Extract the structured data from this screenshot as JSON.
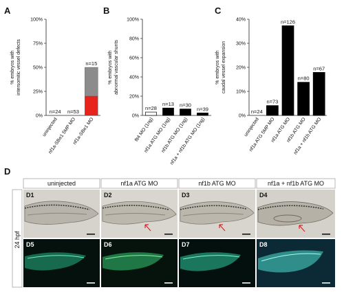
{
  "panels": {
    "A": {
      "label": "A"
    },
    "B": {
      "label": "B"
    },
    "C": {
      "label": "C"
    },
    "D": {
      "label": "D"
    }
  },
  "chart_data": [
    {
      "type": "bar",
      "panel": "A",
      "ylabel": "% embryos with intersomitic vessel defects",
      "ylabel_lines": [
        "% embryos with",
        "intersomitic vessel defects"
      ],
      "ylim": [
        0,
        100
      ],
      "yticks": [
        "0%",
        "25%",
        "50%",
        "75%",
        "100%"
      ],
      "categories": [
        "uninjected",
        "nf1a-SBe1 5MP MO",
        "nf1a-SBe1 MO"
      ],
      "n_labels": [
        "n=24",
        "n=53",
        "n=15"
      ],
      "series": [
        {
          "name": "",
          "color": "#e8231c",
          "values": [
            0,
            0,
            20
          ]
        },
        {
          "name": "",
          "color": "#8c8c8c",
          "values": [
            0,
            0,
            30
          ]
        }
      ]
    },
    {
      "type": "bar",
      "panel": "B",
      "ylabel": "% embryos with abnormal vascular shunts",
      "ylabel_lines": [
        "% embryos with",
        "abnormal vascular shunts"
      ],
      "ylim": [
        0,
        100
      ],
      "yticks": [
        "0%",
        "20%",
        "40%",
        "60%",
        "80%",
        "100%"
      ],
      "categories": [
        "flt4 MO (1ng)",
        "nf1a ATG MO (1ng)",
        "nf1b ATG MO (1ng)",
        "nf1a + nf1b ATG MO (1ng)"
      ],
      "n_labels": [
        "n=28",
        "n=13",
        "n=30",
        "n=39"
      ],
      "values": [
        3.5,
        7.7,
        6.7,
        2.6
      ],
      "colors": [
        "#ffffff",
        "#000000",
        "#000000",
        "#000000"
      ]
    },
    {
      "type": "bar",
      "panel": "C",
      "ylabel": "% embryos with caudal vessel expansion",
      "ylabel_lines": [
        "% embryos with",
        "caudal vessel expansion"
      ],
      "ylim": [
        0,
        40
      ],
      "yticks": [
        "0%",
        "10%",
        "20%",
        "30%",
        "40%"
      ],
      "categories": [
        "uninjected",
        "nf1a ATG 5MP MO",
        "nf1a ATG MO",
        "nf1b ATG MO",
        "nf1a + nf1b ATG MO"
      ],
      "n_labels": [
        "n=24",
        "n=73",
        "n=126",
        "n=80",
        "n=67"
      ],
      "values": [
        0,
        4.1,
        37.3,
        13.8,
        17.9
      ],
      "colors": [
        "#000000",
        "#000000",
        "#000000",
        "#000000",
        "#000000"
      ]
    }
  ],
  "microscopy": {
    "row_label": "24 hpf",
    "headers": [
      "uninjected",
      "nf1a ATG MO",
      "nf1b ATG MO",
      "nf1a + nf1b ATG MO"
    ],
    "brightfield": [
      "D1",
      "D2",
      "D3",
      "D4"
    ],
    "fluorescence": [
      "D5",
      "D6",
      "D7",
      "D8"
    ]
  }
}
